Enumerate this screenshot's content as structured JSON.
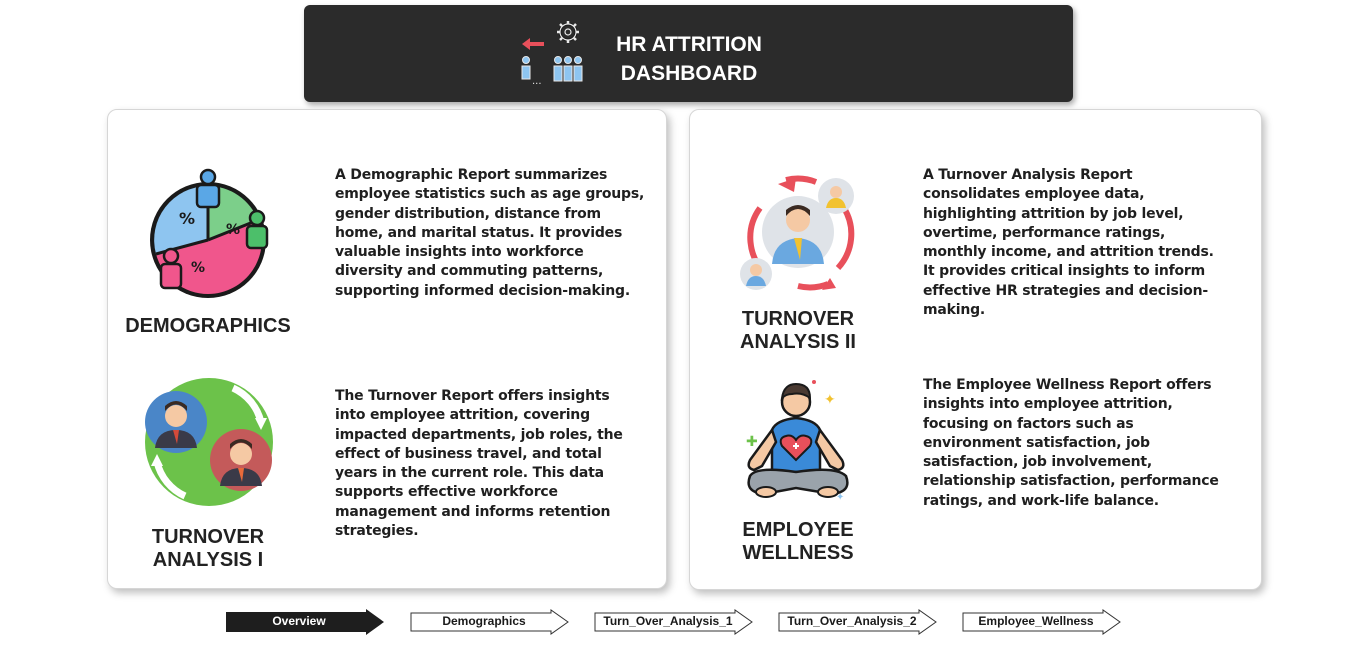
{
  "header": {
    "title_line1": "HR ATTRITION",
    "title_line2": "DASHBOARD",
    "icon": "people-leaving-gear-icon"
  },
  "sections": {
    "demographics": {
      "label": "DEMOGRAPHICS",
      "icon": "demographics-pie-people-icon",
      "description": "A Demographic Report summarizes employee statistics such as age groups, gender distribution, distance from home, and marital status. It provides valuable insights into workforce diversity and commuting patterns, supporting informed decision-making."
    },
    "turnover1": {
      "label_line1": "TURNOVER",
      "label_line2": "ANALYSIS I",
      "icon": "turnover-swap-people-icon",
      "description": "The Turnover Report offers insights into employee attrition, covering impacted departments, job roles, the effect of business travel, and total years in the current role. This data supports effective workforce management and informs retention strategies."
    },
    "turnover2": {
      "label_line1": "TURNOVER",
      "label_line2": "ANALYSIS II",
      "icon": "turnover-cycle-people-icon",
      "description": "A Turnover Analysis Report consolidates employee data, highlighting attrition by job level, overtime, performance ratings, monthly income, and attrition trends. It provides critical insights to inform effective HR strategies and decision-making."
    },
    "wellness": {
      "label_line1": "EMPLOYEE",
      "label_line2": "WELLNESS",
      "icon": "meditation-wellness-icon",
      "description": "The Employee Wellness Report offers insights into employee attrition, focusing on factors such as environment satisfaction, job satisfaction, job involvement, relationship satisfaction, performance ratings, and work-life balance."
    }
  },
  "nav": {
    "overview": "Overview",
    "demographics": "Demographics",
    "turnover1": "Turn_Over_Analysis_1",
    "turnover2": "Turn_Over_Analysis_2",
    "wellness": "Employee_Wellness",
    "active": "Overview"
  },
  "colors": {
    "header_bg": "#2b2b2b",
    "active_nav": "#1e1e1e",
    "accent_red": "#e8505b",
    "accent_blue": "#8ec5f0",
    "accent_green": "#7ccf8a",
    "accent_pink": "#f0568c"
  }
}
